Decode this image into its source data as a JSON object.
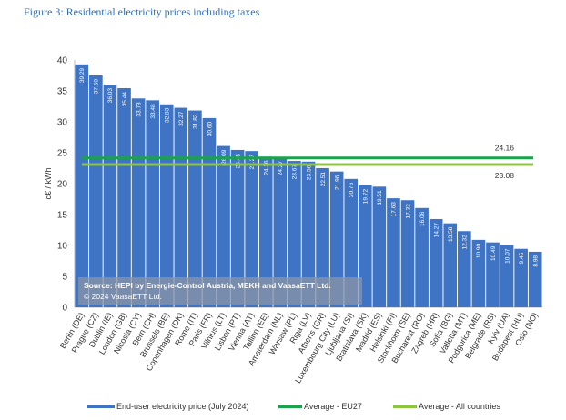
{
  "figure_title": "Figure 3: Residential electricity prices including taxes",
  "source_note": {
    "line1": "Source: HEPI by Energie-Control Austria, MEKH and VaasaETT Ltd.",
    "line2": "© 2024 VaasaETT Ltd."
  },
  "colors": {
    "bar": "#3f74c4",
    "avg_eu27": "#1aa34a",
    "avg_all": "#8cc63f",
    "axis_text": "#333333"
  },
  "chart_data": {
    "type": "bar",
    "title": "Figure 3: Residential electricity prices including taxes",
    "ylabel": "c€ / kWh",
    "xlabel": "",
    "ylim": [
      0,
      40
    ],
    "yticks": [
      0,
      5,
      10,
      15,
      20,
      25,
      30,
      35,
      40
    ],
    "grid": false,
    "legend_position": "bottom",
    "categories": [
      "Berlin (DE)",
      "Prague (CZ)",
      "Dublin (IE)",
      "London (GB)",
      "Nicosia (CY)",
      "Bern (CH)",
      "Brussels (BE)",
      "Copenhagen (DK)",
      "Rome (IT)",
      "Paris (FR)",
      "Vilnius (LT)",
      "Lisbon (PT)",
      "Vienna (AT)",
      "Tallinn (EE)",
      "Amsterdam (NL)",
      "Warsaw (PL)",
      "Riga (LV)",
      "Athens (GR)",
      "Luxembourg City (LU)",
      "Ljubljana (SI)",
      "Bratislava (SK)",
      "Madrid (ES)",
      "Helsinki (FI)",
      "Stockholm (SE)",
      "Bucharest (RO)",
      "Zagreb (HR)",
      "Sofia (BG)",
      "Valletta (MT)",
      "Podgorica (ME)",
      "Belgrade (RS)",
      "Kyiv (UA)",
      "Budapest (HU)",
      "Oslo (NO)"
    ],
    "series": [
      {
        "name": "End-user electricity price (July 2024)",
        "values": [
          39.29,
          37.5,
          36.03,
          35.44,
          33.78,
          33.48,
          32.83,
          32.27,
          31.83,
          30.6,
          26.09,
          25.45,
          25.27,
          24.36,
          24.27,
          23.67,
          23.56,
          22.51,
          21.96,
          20.76,
          19.72,
          19.51,
          17.63,
          17.32,
          16.06,
          14.27,
          13.58,
          12.32,
          10.9,
          10.49,
          10.07,
          9.45,
          8.98
        ],
        "value_labels": [
          "39.29",
          "37.50",
          "36.03",
          "35.44",
          "33.78",
          "33.48",
          "32.83",
          "32.27",
          "31.83",
          "30.60",
          "26.09",
          "25.45",
          "25.27",
          "24.36",
          "24.27",
          "23.67",
          "23.56",
          "22.51",
          "21.96",
          "20.76",
          "19.72",
          "19.51",
          "17.63",
          "17.32",
          "16.06",
          "14.27",
          "13.58",
          "12.32",
          "10.90",
          "10.49",
          "10.07",
          "9.45",
          "8.98"
        ]
      }
    ],
    "reference_lines": [
      {
        "name": "Average - EU27",
        "value": 24.16,
        "label": "24.16"
      },
      {
        "name": "Average - All countries",
        "value": 23.08,
        "label": "23.08"
      }
    ]
  }
}
